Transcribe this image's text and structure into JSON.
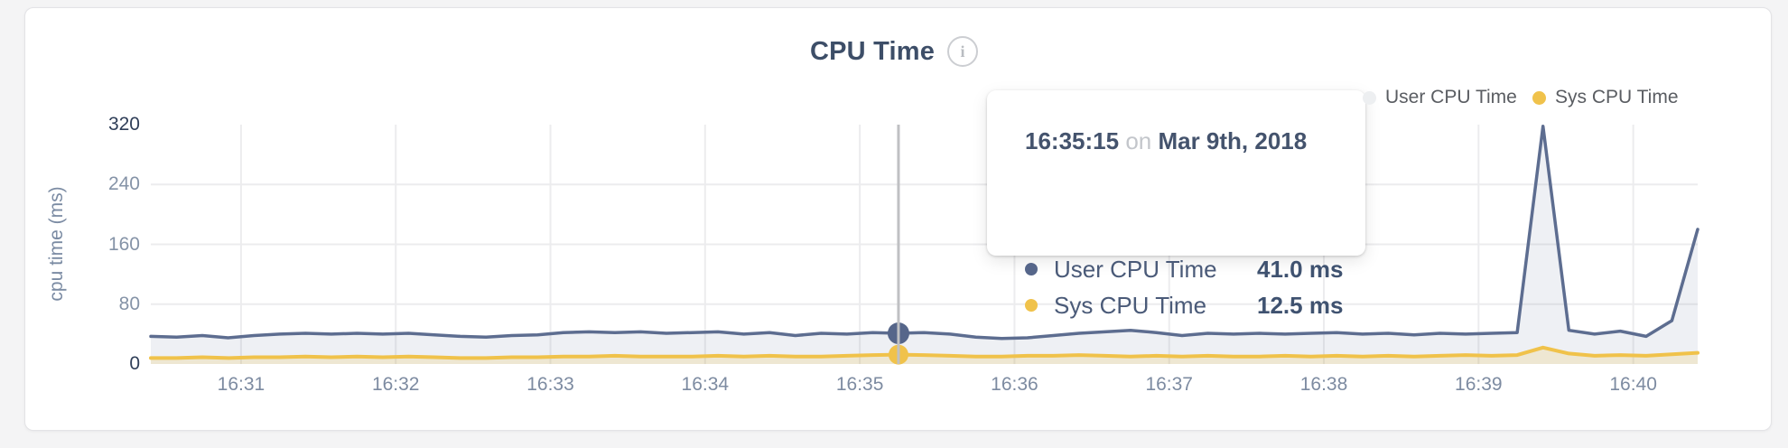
{
  "card": {
    "title": "CPU Time",
    "info_icon_glyph": "i"
  },
  "legend": {
    "items": [
      {
        "label": "User CPU Time",
        "dot_color": "#edeff1"
      },
      {
        "label": "Sys CPU Time",
        "dot_color": "#f0c24b"
      }
    ]
  },
  "tooltip": {
    "time": "16:35:15",
    "conjunction": "on",
    "date": "Mar 9th, 2018",
    "rows": [
      {
        "label": "User CPU Time",
        "value": "41.0 ms",
        "dot_color": "#56668a"
      },
      {
        "label": "Sys CPU Time",
        "value": "12.5 ms",
        "dot_color": "#f0c24b"
      }
    ]
  },
  "colors": {
    "title": "#3d4e68",
    "grid": "#ececee",
    "crosshair": "#bfc0c3",
    "axis_tick": "#8593a7",
    "axis_tick_strong": "#2f3e58",
    "axis_label": "#7b8ba3",
    "x_tick": "#7d8ba1"
  },
  "chart_data": {
    "type": "area",
    "title": "CPU Time",
    "xlabel": "",
    "ylabel": "cpu time (ms)",
    "ylim": [
      0,
      320
    ],
    "y_ticks": [
      0,
      80,
      160,
      240,
      320
    ],
    "x_tick_labels": [
      "16:31",
      "16:32",
      "16:33",
      "16:34",
      "16:35",
      "16:36",
      "16:37",
      "16:38",
      "16:39",
      "16:40"
    ],
    "x_axis": {
      "start_time": "16:30:25",
      "end_time": "16:40:25",
      "window_seconds": 600,
      "first_tick_offset_seconds": 35,
      "tick_interval_seconds": 60,
      "point_interval_seconds": 10
    },
    "grid": true,
    "legend_position": "top-right",
    "hover": {
      "index": 29,
      "time": "16:35:15",
      "date": "Mar 9th, 2018",
      "user_cpu_ms": 41.0,
      "sys_cpu_ms": 12.5
    },
    "series": [
      {
        "name": "User CPU Time",
        "color": "#5d6d90",
        "fill": "rgba(93,109,144,0.10)",
        "line_width": 3.5,
        "values": [
          37,
          36,
          38,
          35,
          38,
          40,
          41,
          40,
          41,
          40,
          41,
          39,
          37,
          36,
          38,
          39,
          42,
          43,
          42,
          43,
          41,
          42,
          43,
          40,
          42,
          38,
          41,
          40,
          42,
          41,
          42,
          40,
          36,
          34,
          35,
          38,
          41,
          43,
          45,
          42,
          38,
          41,
          40,
          41,
          40,
          41,
          42,
          40,
          41,
          39,
          41,
          40,
          41,
          42,
          318,
          45,
          40,
          44,
          37,
          58,
          180
        ]
      },
      {
        "name": "Sys CPU Time",
        "color": "#f0c24a",
        "fill": "rgba(240,194,74,0.20)",
        "line_width": 4,
        "values": [
          8,
          8,
          9,
          8,
          9,
          9,
          10,
          9,
          10,
          9,
          10,
          9,
          8,
          8,
          9,
          9,
          10,
          10,
          11,
          10,
          10,
          10,
          11,
          10,
          11,
          10,
          10,
          11,
          12,
          12.5,
          12,
          11,
          10,
          10,
          11,
          11,
          12,
          11,
          10,
          11,
          10,
          11,
          10,
          10,
          11,
          10,
          11,
          10,
          11,
          10,
          11,
          12,
          11,
          12,
          22,
          14,
          11,
          12,
          11,
          13,
          15
        ]
      }
    ]
  }
}
